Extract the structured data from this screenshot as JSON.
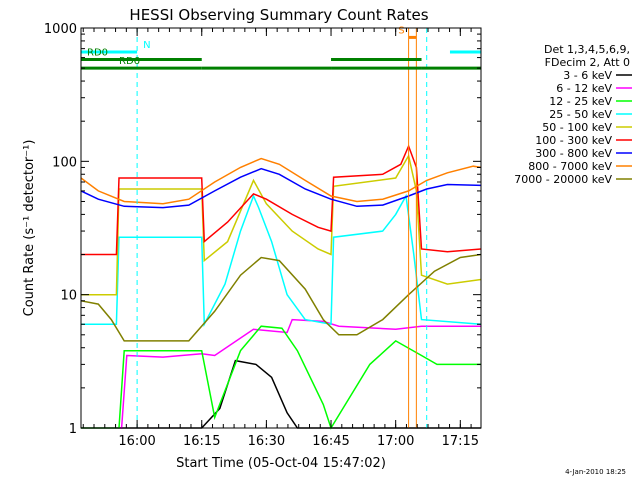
{
  "chart_data": {
    "type": "line",
    "title": "HESSI Observing Summary Count Rates",
    "xlabel": "Start Time (05-Oct-04 15:47:02)",
    "ylabel": "Count Rate (s⁻¹ detector⁻¹)",
    "yscale": "log",
    "xlim": [
      15.783,
      17.33
    ],
    "ylim": [
      1,
      1000
    ],
    "xticks": [
      {
        "x": 16.0,
        "label": "16:00"
      },
      {
        "x": 16.25,
        "label": "16:15"
      },
      {
        "x": 16.5,
        "label": "16:30"
      },
      {
        "x": 16.75,
        "label": "16:45"
      },
      {
        "x": 17.0,
        "label": "17:00"
      },
      {
        "x": 17.25,
        "label": "17:15"
      }
    ],
    "yticks": [
      {
        "y": 1,
        "label": "1"
      },
      {
        "y": 10,
        "label": "10"
      },
      {
        "y": 100,
        "label": "100"
      },
      {
        "y": 1000,
        "label": "1000"
      }
    ],
    "legend_title": [
      "Det 1,3,4,5,6,9,",
      "FDecim 2, Att 0"
    ],
    "legend_position": "right",
    "series": [
      {
        "name": "3 - 6 keV",
        "color": "#000000",
        "points": [
          [
            15.783,
            1
          ],
          [
            16.25,
            1
          ],
          [
            16.32,
            1.4
          ],
          [
            16.38,
            3.2
          ],
          [
            16.46,
            3.0
          ],
          [
            16.52,
            2.4
          ],
          [
            16.58,
            1.3
          ],
          [
            16.62,
            1
          ],
          [
            17.12,
            1
          ],
          [
            17.18,
            1
          ],
          [
            17.33,
            1
          ]
        ]
      },
      {
        "name": "6 - 12 keV",
        "color": "#ff00ff",
        "points": [
          [
            15.783,
            1
          ],
          [
            15.94,
            1
          ],
          [
            15.96,
            3.5
          ],
          [
            16.1,
            3.4
          ],
          [
            16.25,
            3.6
          ],
          [
            16.3,
            3.5
          ],
          [
            16.45,
            5.5
          ],
          [
            16.58,
            5.2
          ],
          [
            16.6,
            6.5
          ],
          [
            16.72,
            6.3
          ],
          [
            16.78,
            5.8
          ],
          [
            17.0,
            5.5
          ],
          [
            17.1,
            5.8
          ],
          [
            17.16,
            5.8
          ],
          [
            17.33,
            5.8
          ]
        ]
      },
      {
        "name": "12 - 25 keV",
        "color": "#00ff00",
        "points": [
          [
            15.783,
            1
          ],
          [
            15.93,
            1
          ],
          [
            15.95,
            3.8
          ],
          [
            16.05,
            3.8
          ],
          [
            16.25,
            3.8
          ],
          [
            16.3,
            1.2
          ],
          [
            16.4,
            3.8
          ],
          [
            16.48,
            5.8
          ],
          [
            16.56,
            5.6
          ],
          [
            16.62,
            3.8
          ],
          [
            16.72,
            1.5
          ],
          [
            16.75,
            1
          ],
          [
            16.9,
            3.0
          ],
          [
            17.0,
            4.5
          ],
          [
            17.1,
            3.5
          ],
          [
            17.16,
            3.0
          ],
          [
            17.33,
            3.0
          ]
        ]
      },
      {
        "name": "25 - 50 keV",
        "color": "#00ffff",
        "points": [
          [
            15.783,
            6.0
          ],
          [
            15.92,
            6.0
          ],
          [
            15.93,
            27
          ],
          [
            16.25,
            27
          ],
          [
            16.26,
            6.0
          ],
          [
            16.34,
            12
          ],
          [
            16.4,
            30
          ],
          [
            16.45,
            55
          ],
          [
            16.47,
            45
          ],
          [
            16.52,
            25
          ],
          [
            16.58,
            10
          ],
          [
            16.65,
            6.5
          ],
          [
            16.75,
            6.0
          ],
          [
            16.76,
            27
          ],
          [
            16.95,
            30
          ],
          [
            17.0,
            40
          ],
          [
            17.04,
            55
          ],
          [
            17.07,
            20
          ],
          [
            17.1,
            6.5
          ],
          [
            17.33,
            6.0
          ]
        ]
      },
      {
        "name": "50 - 100 keV",
        "color": "#cccc00",
        "points": [
          [
            15.783,
            10
          ],
          [
            15.92,
            10
          ],
          [
            15.93,
            62
          ],
          [
            16.25,
            62
          ],
          [
            16.26,
            18
          ],
          [
            16.35,
            25
          ],
          [
            16.45,
            72
          ],
          [
            16.5,
            48
          ],
          [
            16.6,
            30
          ],
          [
            16.7,
            22
          ],
          [
            16.75,
            20
          ],
          [
            16.76,
            65
          ],
          [
            17.0,
            75
          ],
          [
            17.05,
            110
          ],
          [
            17.08,
            60
          ],
          [
            17.1,
            14
          ],
          [
            17.2,
            12
          ],
          [
            17.33,
            13
          ]
        ]
      },
      {
        "name": "100 - 300 keV",
        "color": "#ff0000",
        "points": [
          [
            15.783,
            20
          ],
          [
            15.92,
            20
          ],
          [
            15.93,
            75
          ],
          [
            16.25,
            75
          ],
          [
            16.26,
            25
          ],
          [
            16.35,
            35
          ],
          [
            16.45,
            57
          ],
          [
            16.5,
            52
          ],
          [
            16.6,
            40
          ],
          [
            16.7,
            32
          ],
          [
            16.75,
            30
          ],
          [
            16.76,
            76
          ],
          [
            16.95,
            80
          ],
          [
            17.02,
            95
          ],
          [
            17.05,
            130
          ],
          [
            17.08,
            90
          ],
          [
            17.1,
            22
          ],
          [
            17.2,
            21
          ],
          [
            17.33,
            22
          ]
        ]
      },
      {
        "name": "300 - 800 keV",
        "color": "#0000ff",
        "points": [
          [
            15.783,
            60
          ],
          [
            15.85,
            52
          ],
          [
            15.95,
            46
          ],
          [
            16.1,
            45
          ],
          [
            16.2,
            47
          ],
          [
            16.3,
            60
          ],
          [
            16.4,
            76
          ],
          [
            16.48,
            88
          ],
          [
            16.55,
            80
          ],
          [
            16.65,
            62
          ],
          [
            16.75,
            52
          ],
          [
            16.85,
            46
          ],
          [
            16.95,
            47
          ],
          [
            17.05,
            55
          ],
          [
            17.12,
            62
          ],
          [
            17.2,
            67
          ],
          [
            17.33,
            66
          ]
        ]
      },
      {
        "name": "800 - 7000 keV",
        "color": "#ff8000",
        "points": [
          [
            15.783,
            75
          ],
          [
            15.85,
            60
          ],
          [
            15.95,
            50
          ],
          [
            16.1,
            48
          ],
          [
            16.2,
            52
          ],
          [
            16.3,
            70
          ],
          [
            16.4,
            90
          ],
          [
            16.48,
            105
          ],
          [
            16.55,
            95
          ],
          [
            16.65,
            72
          ],
          [
            16.75,
            55
          ],
          [
            16.85,
            50
          ],
          [
            16.95,
            52
          ],
          [
            17.05,
            60
          ],
          [
            17.12,
            72
          ],
          [
            17.2,
            82
          ],
          [
            17.3,
            92
          ],
          [
            17.33,
            90
          ]
        ]
      },
      {
        "name": "7000 - 20000 keV",
        "color": "#808000",
        "points": [
          [
            15.783,
            9.0
          ],
          [
            15.85,
            8.5
          ],
          [
            15.9,
            6.5
          ],
          [
            15.95,
            4.5
          ],
          [
            16.1,
            4.5
          ],
          [
            16.2,
            4.5
          ],
          [
            16.3,
            7.5
          ],
          [
            16.4,
            14
          ],
          [
            16.48,
            19
          ],
          [
            16.55,
            18
          ],
          [
            16.65,
            11
          ],
          [
            16.72,
            6.5
          ],
          [
            16.78,
            5.0
          ],
          [
            16.85,
            5.0
          ],
          [
            16.95,
            6.5
          ],
          [
            17.05,
            10
          ],
          [
            17.15,
            15
          ],
          [
            17.25,
            19
          ],
          [
            17.33,
            20
          ]
        ]
      }
    ],
    "state_bars": [
      {
        "label": "N",
        "color": "#00ffff",
        "y": 660,
        "segments": [
          [
            15.783,
            16.0
          ],
          [
            17.21,
            17.33
          ]
        ]
      },
      {
        "label": "RD0",
        "color": "#008000",
        "y": 580,
        "segments": [
          [
            15.783,
            16.25
          ],
          [
            16.75,
            17.1
          ]
        ]
      },
      {
        "label": "RD6",
        "color": "#008000",
        "y": 500,
        "segments": [
          [
            15.783,
            16.25
          ],
          [
            16.25,
            16.75
          ],
          [
            16.75,
            17.1
          ],
          [
            17.1,
            17.33
          ]
        ]
      },
      {
        "label": "S",
        "color": "#ff8000",
        "y": 850,
        "segments": [
          [
            17.05,
            17.08
          ]
        ]
      }
    ],
    "vertical_markers": [
      {
        "x": 16.0,
        "color": "#00ffff",
        "style": "dashed"
      },
      {
        "x": 17.05,
        "color": "#ff8000",
        "style": "solid"
      },
      {
        "x": 17.08,
        "color": "#ff8000",
        "style": "solid"
      },
      {
        "x": 17.12,
        "color": "#00ffff",
        "style": "dashed"
      },
      {
        "x": 17.33,
        "color": "#00ffff",
        "style": "dashed"
      }
    ],
    "timestamp": "4-Jan-2010 18:25"
  }
}
